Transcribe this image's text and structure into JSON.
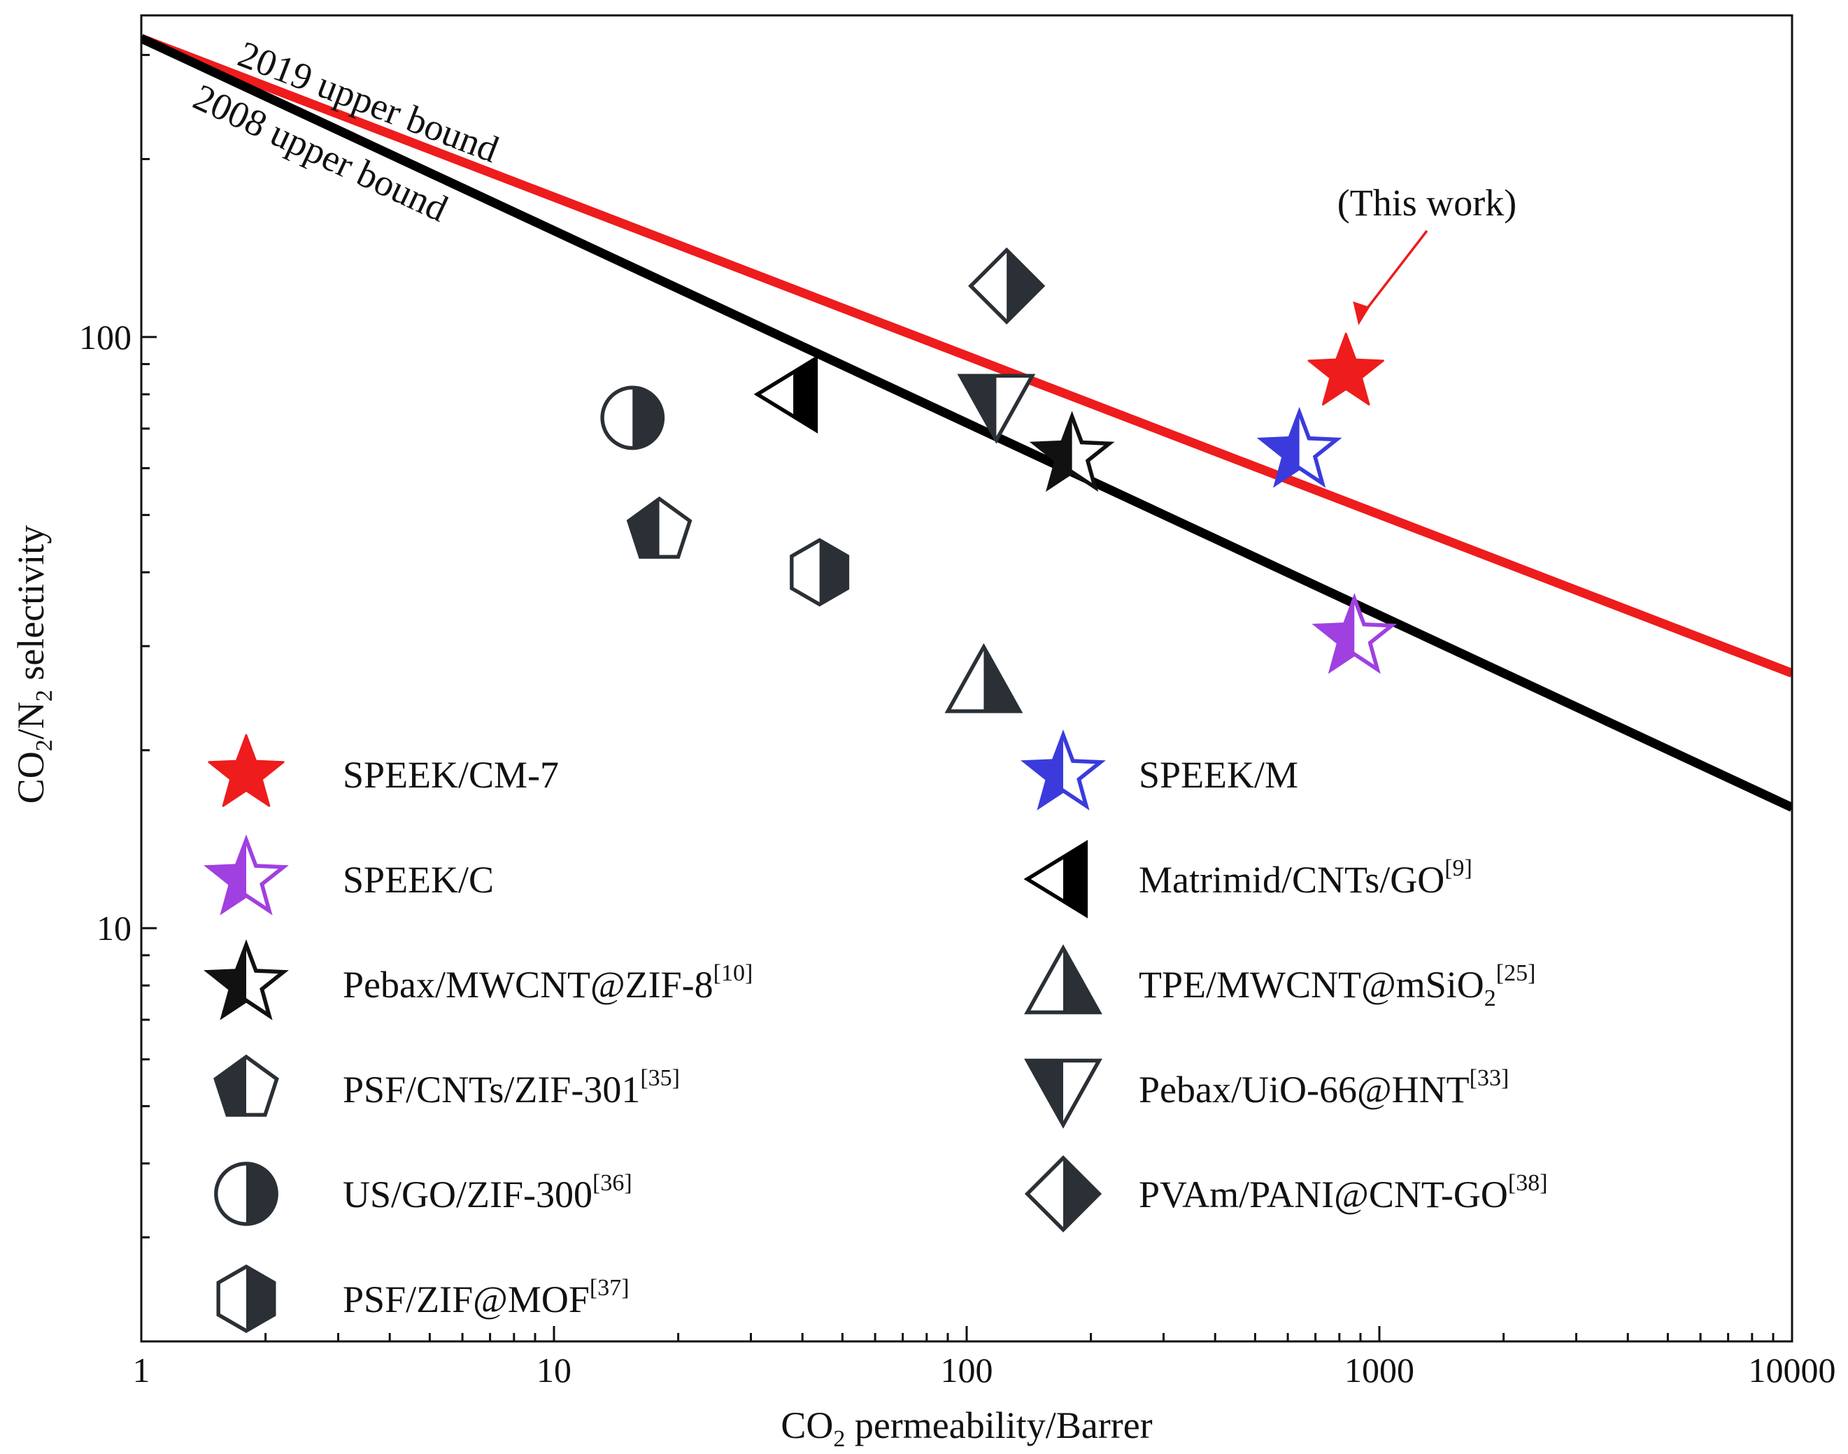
{
  "chart_data": {
    "type": "scatter",
    "title": "",
    "xlabel": "CO2 permeability/Barrer",
    "xlabel_parts": {
      "pre": "CO",
      "sub": "2",
      "post": " permeability/Barrer"
    },
    "ylabel": "CO2/N2 selectivity",
    "ylabel_parts": {
      "a": "CO",
      "b": "2",
      "c": "/N",
      "d": "2",
      "e": " selectivity"
    },
    "xscale": "log",
    "yscale": "log",
    "xlim": [
      1,
      10000
    ],
    "ylim": [
      2,
      350
    ],
    "x_ticks": [
      1,
      10,
      100,
      1000,
      10000
    ],
    "x_tick_labels": [
      "1",
      "10",
      "100",
      "1000",
      "10000"
    ],
    "y_ticks": [
      10,
      100
    ],
    "y_tick_labels": [
      "10",
      "100"
    ],
    "upper_bounds": [
      {
        "name": "2019 upper bound",
        "color": "#ee1c1c",
        "points": [
          [
            1,
            320
          ],
          [
            10000,
            27
          ]
        ]
      },
      {
        "name": "2008 upper bound",
        "color": "#000000",
        "points": [
          [
            1,
            320
          ],
          [
            10000,
            16
          ]
        ]
      }
    ],
    "annotation": {
      "text": "(This work)",
      "target": [
        830,
        87
      ],
      "arrow_color": "#ee1c1c"
    },
    "series": [
      {
        "name": "SPEEK/CM-7",
        "marker": "star-filled",
        "color": "#ee1c1c",
        "x": 830,
        "y": 87
      },
      {
        "name": "SPEEK/M",
        "marker": "star-half",
        "color": "#3b3bdd",
        "x": 640,
        "y": 64
      },
      {
        "name": "SPEEK/C",
        "marker": "star-half",
        "color": "#a040e0",
        "x": 870,
        "y": 31
      },
      {
        "name": "Pebax/MWCNT@ZIF-8",
        "ref": "[10]",
        "marker": "star-half",
        "color": "#111111",
        "x": 180,
        "y": 63
      },
      {
        "name": "PSF/CNTs/ZIF-301",
        "ref": "[35]",
        "marker": "pentagon-half",
        "color": "#2a3035",
        "x": 18,
        "y": 47
      },
      {
        "name": "US/GO/ZIF-300",
        "ref": "[36]",
        "marker": "circle-half",
        "color": "#2a3035",
        "x": 15.5,
        "y": 73
      },
      {
        "name": "PSF/ZIF@MOF",
        "ref": "[37]",
        "marker": "hexagon-half",
        "color": "#2a3035",
        "x": 44,
        "y": 40
      },
      {
        "name": "Matrimid/CNTs/GO",
        "ref": "[9]",
        "marker": "triangle-left-half",
        "color": "#000000",
        "x": 38,
        "y": 80
      },
      {
        "name": "TPE/MWCNT@mSiO2",
        "ref": "[25]",
        "marker": "triangle-up-half",
        "color": "#2a3035",
        "x": 110,
        "y": 26
      },
      {
        "name": "Pebax/UiO-66@HNT",
        "ref": "[33]",
        "marker": "triangle-down-half",
        "color": "#2a3035",
        "x": 118,
        "y": 77
      },
      {
        "name": "PVAm/PANI@CNT-GO",
        "ref": "[38]",
        "marker": "diamond-half",
        "color": "#2a3035",
        "x": 125,
        "y": 122
      }
    ],
    "legend": {
      "placement": "lower-left",
      "items": [
        {
          "pre": "SPEEK/CM-7",
          "sub": "",
          "mid": "",
          "sup": "",
          "marker": 0
        },
        {
          "pre": "SPEEK/C",
          "sub": "",
          "mid": "",
          "sup": "",
          "marker": 2
        },
        {
          "pre": "Pebax/MWCNT@ZIF-8",
          "sub": "",
          "mid": "",
          "sup": "[10]",
          "marker": 3
        },
        {
          "pre": "PSF/CNTs/ZIF-301",
          "sub": "",
          "mid": "",
          "sup": "[35]",
          "marker": 4
        },
        {
          "pre": "US/GO/ZIF-300",
          "sub": "",
          "mid": "",
          "sup": "[36]",
          "marker": 5
        },
        {
          "pre": "PSF/ZIF@MOF",
          "sub": "",
          "mid": "",
          "sup": "[37]",
          "marker": 6
        },
        {
          "pre": "SPEEK/M",
          "sub": "",
          "mid": "",
          "sup": "",
          "marker": 1
        },
        {
          "pre": "Matrimid/CNTs/GO",
          "sub": "",
          "mid": "",
          "sup": "[9]",
          "marker": 7
        },
        {
          "pre": "TPE/MWCNT@mSiO",
          "sub": "2",
          "mid": "",
          "sup": "[25]",
          "marker": 8
        },
        {
          "pre": "Pebax/UiO-66@HNT",
          "sub": "",
          "mid": "",
          "sup": "[33]",
          "marker": 9
        },
        {
          "pre": "PVAm/PANI@CNT-GO",
          "sub": "",
          "mid": "",
          "sup": "[38]",
          "marker": 10
        }
      ]
    }
  }
}
